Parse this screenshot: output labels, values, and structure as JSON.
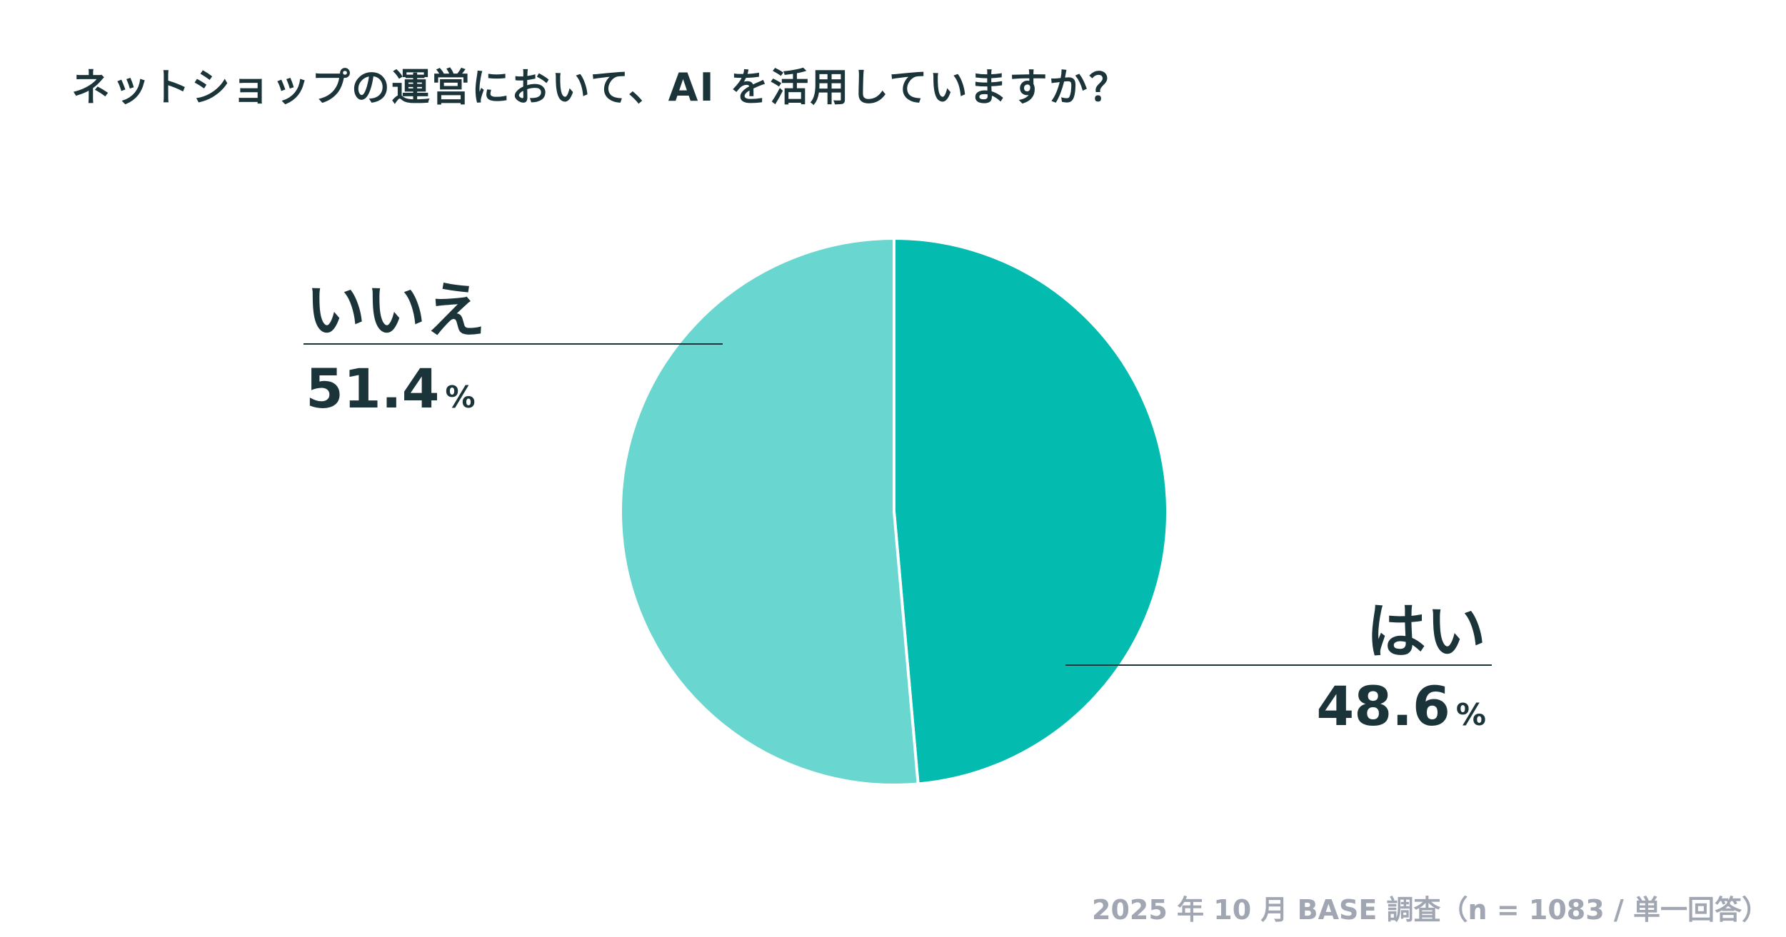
{
  "chart_data": {
    "type": "pie",
    "title": "ネットショップの運営において、AI を活用していますか？",
    "slices": [
      {
        "label": "はい",
        "value": 48.6,
        "display": "48.6",
        "unit": "%",
        "color": "#03bbae"
      },
      {
        "label": "いいえ",
        "value": 51.4,
        "display": "51.4",
        "unit": "%",
        "color": "#69d7cf"
      }
    ],
    "start": "top",
    "direction": "clockwise",
    "source": "2025 年 10 月 BASE 調査（n = 1083 / 単一回答）"
  }
}
